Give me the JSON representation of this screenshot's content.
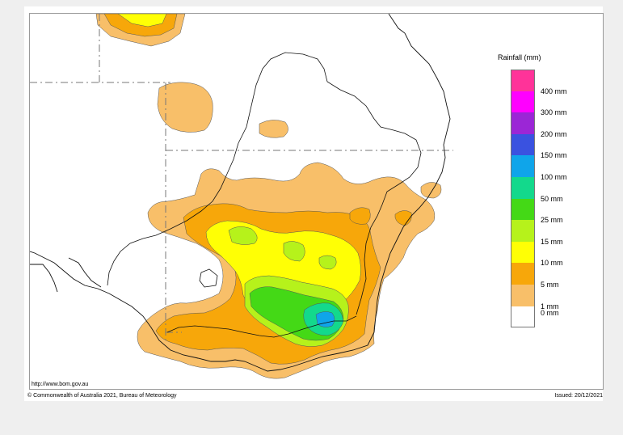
{
  "map": {
    "legend_title": "Rainfall (mm)",
    "legend": [
      {
        "label": "400 mm",
        "color": "#ff3399"
      },
      {
        "label": "300 mm",
        "color": "#ff00ff"
      },
      {
        "label": "200 mm",
        "color": "#9b26d6"
      },
      {
        "label": "150 mm",
        "color": "#3a52e0"
      },
      {
        "label": "100 mm",
        "color": "#0fa5ea"
      },
      {
        "label": "50 mm",
        "color": "#13d98c"
      },
      {
        "label": "25 mm",
        "color": "#44d916"
      },
      {
        "label": "15 mm",
        "color": "#b6f21b"
      },
      {
        "label": "10 mm",
        "color": "#ffff05"
      },
      {
        "label": "5 mm",
        "color": "#f7a70a"
      },
      {
        "label": "1 mm",
        "color": "#f8bf69"
      },
      {
        "label": "0 mm",
        "color": "#ffffff"
      }
    ],
    "url": "http://www.bom.gov.au",
    "copyright": "© Commonwealth of Australia 2021, Bureau of Meteorology",
    "issued": "Issued: 20/12/2021"
  }
}
